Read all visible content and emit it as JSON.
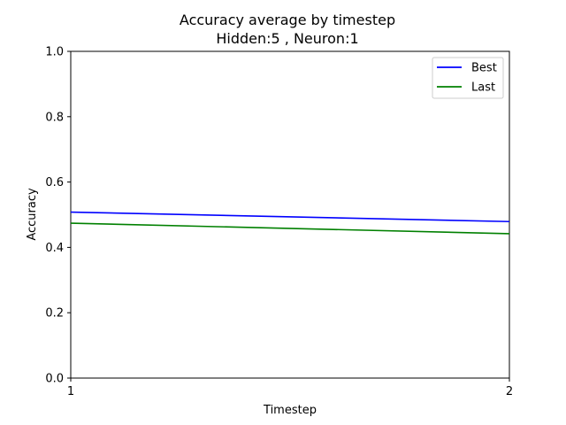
{
  "chart_data": {
    "type": "line",
    "title": "Accuracy average by timestep",
    "subtitle": "Hidden:5 , Neuron:1",
    "xlabel": "Timestep",
    "ylabel": "Accuracy",
    "x": [
      1,
      2
    ],
    "x_ticks": [
      "1",
      "2"
    ],
    "xlim": [
      1,
      2
    ],
    "y_ticks": [
      "0.0",
      "0.2",
      "0.4",
      "0.6",
      "0.8",
      "1.0"
    ],
    "ylim": [
      0,
      1
    ],
    "grid": false,
    "legend_position": "top-right",
    "series": [
      {
        "name": "Best",
        "color": "#0000ff",
        "values": [
          0.508,
          0.479
        ]
      },
      {
        "name": "Last",
        "color": "#008000",
        "values": [
          0.474,
          0.442
        ]
      }
    ]
  }
}
